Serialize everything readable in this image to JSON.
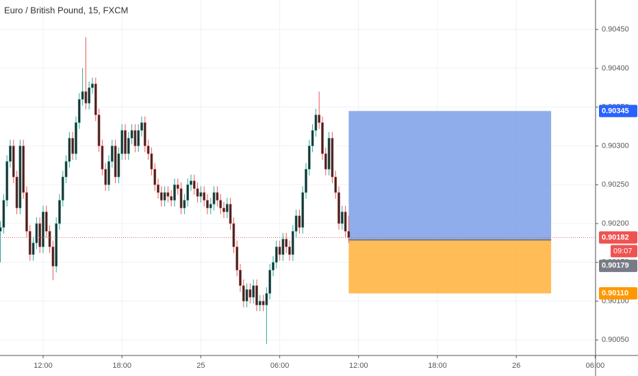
{
  "chart_data": {
    "type": "candlestick",
    "title": "Euro / British Pound, 15, FXCM",
    "x": [
      8.75,
      9,
      9.25,
      9.5,
      9.75,
      10,
      10.25,
      10.5,
      10.75,
      11,
      11.25,
      11.5,
      11.75,
      12,
      12.25,
      12.5,
      12.75,
      13,
      13.25,
      13.5,
      13.75,
      14,
      14.25,
      14.5,
      14.75,
      15,
      15.25,
      15.5,
      15.75,
      16,
      16.25,
      16.5,
      16.75,
      17,
      17.25,
      17.5,
      17.75,
      18,
      18.25,
      18.5,
      18.75,
      19,
      19.25,
      19.5,
      19.75,
      20,
      20.25,
      20.5,
      20.75,
      21,
      21.25,
      21.5,
      21.75,
      22,
      22.25,
      22.5,
      22.75,
      23,
      23.25,
      23.5,
      23.75,
      24,
      24.25,
      24.5,
      24.75,
      25,
      25.25,
      25.5,
      25.75,
      26,
      26.25,
      26.5,
      26.75,
      27,
      27.25,
      27.5,
      27.75,
      28,
      28.25,
      28.5,
      28.75,
      29,
      29.25,
      29.5,
      29.75,
      30,
      30.25,
      30.5,
      30.75,
      31,
      31.25,
      31.5,
      31.75,
      32,
      32.25,
      32.5,
      32.75,
      33,
      33.25,
      33.5,
      33.75,
      34,
      34.25,
      34.5,
      34.75,
      35,
      35.25
    ],
    "open": [
      0.9019,
      0.90195,
      0.9023,
      0.9028,
      0.903,
      0.9026,
      0.9022,
      0.903,
      0.9024,
      0.9019,
      0.9016,
      0.90175,
      0.902,
      0.9017,
      0.90215,
      0.9019,
      0.9017,
      0.90145,
      0.902,
      0.9023,
      0.9026,
      0.9028,
      0.9031,
      0.9029,
      0.9033,
      0.9036,
      0.9037,
      0.90355,
      0.90375,
      0.9038,
      0.9034,
      0.903,
      0.9027,
      0.9025,
      0.9028,
      0.903,
      0.9026,
      0.9029,
      0.9032,
      0.9029,
      0.9031,
      0.9032,
      0.903,
      0.9032,
      0.9033,
      0.903,
      0.9029,
      0.9027,
      0.9025,
      0.9024,
      0.9023,
      0.9024,
      0.90235,
      0.9023,
      0.9025,
      0.90245,
      0.9022,
      0.9023,
      0.9025,
      0.90255,
      0.90245,
      0.90235,
      0.9024,
      0.9023,
      0.9022,
      0.90225,
      0.9024,
      0.9023,
      0.9022,
      0.90215,
      0.90225,
      0.902,
      0.9017,
      0.9014,
      0.9012,
      0.901,
      0.90115,
      0.90105,
      0.9012,
      0.90095,
      0.901,
      0.90095,
      0.9011,
      0.9014,
      0.9015,
      0.9017,
      0.9016,
      0.9018,
      0.9017,
      0.9016,
      0.9019,
      0.9021,
      0.90195,
      0.9024,
      0.9027,
      0.903,
      0.9032,
      0.9034,
      0.9033,
      0.9029,
      0.9027,
      0.9031,
      0.9026,
      0.9024,
      0.902,
      0.90215,
      0.9019
    ],
    "close": [
      0.90195,
      0.9023,
      0.9028,
      0.903,
      0.9026,
      0.9022,
      0.903,
      0.9024,
      0.9019,
      0.9016,
      0.90175,
      0.902,
      0.9017,
      0.90215,
      0.9019,
      0.9017,
      0.90145,
      0.902,
      0.9023,
      0.9026,
      0.9028,
      0.9031,
      0.9029,
      0.9033,
      0.9036,
      0.9037,
      0.90355,
      0.90375,
      0.9038,
      0.9034,
      0.903,
      0.9027,
      0.9025,
      0.9028,
      0.903,
      0.9026,
      0.9029,
      0.9032,
      0.9029,
      0.9031,
      0.9032,
      0.903,
      0.9032,
      0.9033,
      0.903,
      0.9029,
      0.9027,
      0.9025,
      0.9024,
      0.9023,
      0.9024,
      0.90235,
      0.9023,
      0.9025,
      0.90245,
      0.9022,
      0.9023,
      0.9025,
      0.90255,
      0.90245,
      0.90235,
      0.9024,
      0.9023,
      0.9022,
      0.90225,
      0.9024,
      0.9023,
      0.9022,
      0.90215,
      0.90225,
      0.902,
      0.9017,
      0.9014,
      0.9012,
      0.901,
      0.90115,
      0.90105,
      0.9012,
      0.90095,
      0.901,
      0.90095,
      0.9011,
      0.9014,
      0.9015,
      0.9017,
      0.9016,
      0.9018,
      0.9017,
      0.9016,
      0.9019,
      0.9021,
      0.90195,
      0.9024,
      0.9027,
      0.903,
      0.9032,
      0.9034,
      0.9033,
      0.9029,
      0.9027,
      0.9031,
      0.9026,
      0.9024,
      0.902,
      0.90215,
      0.9019,
      0.90182
    ],
    "high": [
      0.90203,
      0.90238,
      0.90288,
      0.90308,
      0.90308,
      0.90268,
      0.90308,
      0.90308,
      0.90248,
      0.90198,
      0.90183,
      0.90208,
      0.90208,
      0.90223,
      0.90223,
      0.90198,
      0.90178,
      0.90208,
      0.90238,
      0.90268,
      0.90288,
      0.90318,
      0.90318,
      0.90338,
      0.90368,
      0.904,
      0.9044,
      0.90383,
      0.90388,
      0.90388,
      0.90348,
      0.90308,
      0.90278,
      0.90288,
      0.90308,
      0.90308,
      0.90298,
      0.90328,
      0.90328,
      0.90318,
      0.90328,
      0.90328,
      0.90328,
      0.90338,
      0.90338,
      0.90308,
      0.90298,
      0.90278,
      0.90258,
      0.90248,
      0.90248,
      0.90248,
      0.90243,
      0.90258,
      0.90258,
      0.90253,
      0.90238,
      0.90258,
      0.90263,
      0.90263,
      0.90253,
      0.90248,
      0.90248,
      0.90238,
      0.90233,
      0.90248,
      0.90248,
      0.90238,
      0.90228,
      0.90233,
      0.90233,
      0.90208,
      0.90178,
      0.90148,
      0.90128,
      0.90123,
      0.90123,
      0.90128,
      0.90128,
      0.90108,
      0.90108,
      0.90118,
      0.90148,
      0.90158,
      0.90178,
      0.90178,
      0.90188,
      0.90188,
      0.90178,
      0.90198,
      0.90218,
      0.90218,
      0.90248,
      0.90278,
      0.90308,
      0.90328,
      0.90348,
      0.9037,
      0.90338,
      0.90298,
      0.90318,
      0.90318,
      0.90268,
      0.90248,
      0.90223,
      0.90223,
      0.9021
    ],
    "low": [
      0.9015,
      0.90187,
      0.90222,
      0.90272,
      0.90252,
      0.90212,
      0.90212,
      0.90232,
      0.90182,
      0.90152,
      0.90152,
      0.90167,
      0.90162,
      0.90162,
      0.90182,
      0.90162,
      0.90127,
      0.90137,
      0.90192,
      0.90222,
      0.90252,
      0.90272,
      0.90282,
      0.90282,
      0.90322,
      0.90352,
      0.90347,
      0.90347,
      0.90367,
      0.90332,
      0.90292,
      0.90262,
      0.90242,
      0.90242,
      0.90272,
      0.90252,
      0.90252,
      0.90282,
      0.90282,
      0.90282,
      0.90302,
      0.90292,
      0.90292,
      0.90312,
      0.90292,
      0.90282,
      0.90262,
      0.90242,
      0.90232,
      0.90222,
      0.90222,
      0.90227,
      0.90222,
      0.90222,
      0.90237,
      0.90212,
      0.90212,
      0.90222,
      0.90242,
      0.90237,
      0.90227,
      0.90227,
      0.90222,
      0.90212,
      0.90212,
      0.90217,
      0.90222,
      0.90212,
      0.90207,
      0.90207,
      0.90192,
      0.90162,
      0.90132,
      0.90112,
      0.90092,
      0.90092,
      0.90097,
      0.90097,
      0.90087,
      0.90087,
      0.90087,
      0.90045,
      0.90102,
      0.90132,
      0.90142,
      0.90152,
      0.90152,
      0.90162,
      0.90152,
      0.90152,
      0.90182,
      0.90187,
      0.90187,
      0.90232,
      0.90262,
      0.90292,
      0.90312,
      0.90322,
      0.90282,
      0.90262,
      0.90262,
      0.90252,
      0.90232,
      0.90192,
      0.90192,
      0.90182,
      0.90175
    ],
    "up_color": "#26a69a",
    "down_color": "#ef5350",
    "body_color": "#2b2b2b",
    "xlim": [
      8.72,
      54.03
    ],
    "xticks": [
      {
        "value": 12,
        "label": "12:00"
      },
      {
        "value": 18,
        "label": "18:00"
      },
      {
        "value": 24,
        "label": "25"
      },
      {
        "value": 30,
        "label": "06:00"
      },
      {
        "value": 36,
        "label": "12:00"
      },
      {
        "value": 42,
        "label": "18:00"
      },
      {
        "value": 48,
        "label": "26"
      },
      {
        "value": 54,
        "label": "06:00"
      }
    ],
    "ylim": [
      0.9003,
      0.90488
    ],
    "yticks": [
      {
        "value": 0.9005,
        "label": "0.90050"
      },
      {
        "value": 0.901,
        "label": "0.90100"
      },
      {
        "value": 0.9015,
        "label": "0.90150"
      },
      {
        "value": 0.902,
        "label": "0.90200"
      },
      {
        "value": 0.9025,
        "label": "0.90250"
      },
      {
        "value": 0.903,
        "label": "0.90300"
      },
      {
        "value": 0.9035,
        "label": "0.90350"
      },
      {
        "value": 0.904,
        "label": "0.90400"
      },
      {
        "value": 0.9045,
        "label": "0.90450"
      }
    ],
    "grid": true,
    "last_price": 0.90182,
    "countdown": "09:07",
    "position": {
      "x": [
        35.25,
        50.65
      ],
      "target": 0.90345,
      "entry": 0.90179,
      "stop": {
        "value": 0.9011,
        "label": "0.90110"
      },
      "profit_color": "#7a9fe6",
      "loss_color": "#ffb03a",
      "target_color": "#2962ff",
      "entry_color": "#787b86",
      "stop_color": "#ff9800"
    }
  }
}
